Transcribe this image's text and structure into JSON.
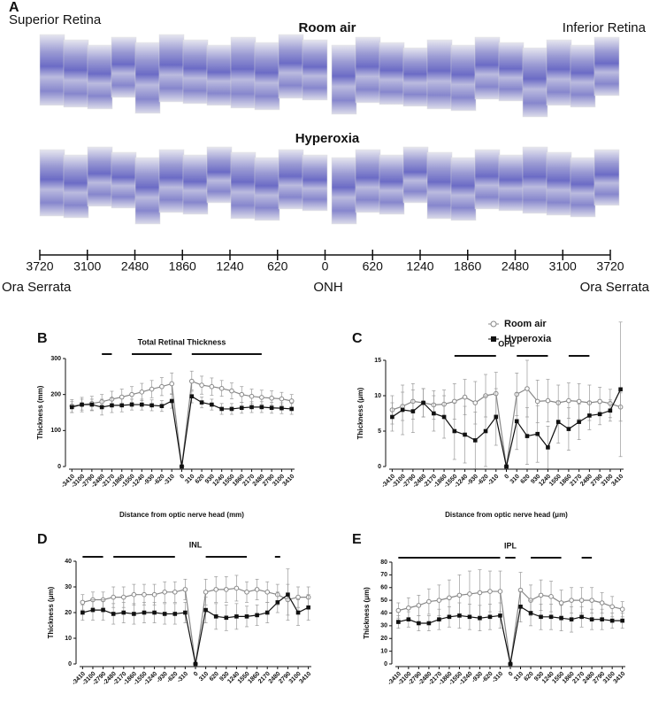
{
  "panel_a": {
    "label": "A",
    "superior": "Superior Retina",
    "inferior": "Inferior Retina",
    "room_air": "Room air",
    "hyperoxia": "Hyperoxia",
    "xlim": [
      -3720,
      3720
    ],
    "xticks": [
      {
        "value": -3720,
        "label": "3720"
      },
      {
        "value": -3100,
        "label": "3100"
      },
      {
        "value": -2480,
        "label": "2480"
      },
      {
        "value": -1860,
        "label": "1860"
      },
      {
        "value": -1240,
        "label": "1240"
      },
      {
        "value": -620,
        "label": "620"
      },
      0,
      620,
      1240,
      1860,
      2480,
      3100,
      3720
    ],
    "left_end": "Ora Serrata",
    "center": "ONH",
    "right_end": "Ora Serrata"
  },
  "chart_data": [
    {
      "panel": "B",
      "type": "line",
      "title": "Total Retinal Thickness",
      "xlabel": "Distance from optic nerve head (mm)",
      "ylabel": "Thickness (mm)",
      "x": [
        -3410,
        -3100,
        -2790,
        -2480,
        -2170,
        -1860,
        -1550,
        -1240,
        -930,
        -620,
        -310,
        0,
        310,
        620,
        930,
        1240,
        1550,
        1860,
        2170,
        2480,
        2790,
        3100,
        3410
      ],
      "xlim": [
        -3500,
        3500
      ],
      "xticks": [
        -3410,
        -3100,
        -2790,
        -2480,
        -2170,
        -1860,
        -1550,
        -1240,
        -930,
        -620,
        -310,
        0,
        310,
        620,
        930,
        1240,
        1550,
        1860,
        2170,
        2480,
        2790,
        3100,
        3410
      ],
      "ylim": [
        0,
        300
      ],
      "yticks": [
        0,
        100,
        200,
        300
      ],
      "series": [
        {
          "color": "#888888",
          "marker": "circle",
          "values": [
            168,
            172,
            175,
            180,
            187,
            193,
            200,
            207,
            215,
            222,
            230,
            0,
            237,
            226,
            222,
            217,
            210,
            200,
            195,
            192,
            190,
            188,
            182
          ],
          "errors": [
            18,
            20,
            20,
            20,
            22,
            22,
            22,
            24,
            24,
            25,
            30,
            0,
            28,
            25,
            24,
            22,
            22,
            22,
            20,
            20,
            20,
            18,
            18
          ]
        },
        {
          "color": "#111111",
          "marker": "square",
          "values": [
            165,
            172,
            172,
            165,
            170,
            170,
            172,
            172,
            170,
            168,
            182,
            0,
            195,
            178,
            172,
            160,
            160,
            163,
            165,
            165,
            163,
            162,
            160
          ],
          "errors": [
            15,
            15,
            15,
            22,
            20,
            18,
            15,
            15,
            15,
            15,
            20,
            0,
            18,
            15,
            15,
            15,
            15,
            15,
            15,
            15,
            15,
            15,
            15
          ]
        }
      ],
      "significance_bars": [
        [
          -2480,
          -2170
        ],
        [
          -1550,
          -310
        ],
        [
          310,
          2480
        ]
      ]
    },
    {
      "panel": "C",
      "type": "line",
      "title": "OPL",
      "xlabel": "Distance from optic nerve head (μm)",
      "ylabel": "Thickness (μm)",
      "x": [
        -3410,
        -3100,
        -2790,
        -2480,
        -2170,
        -1860,
        -1550,
        -1240,
        -930,
        -620,
        -310,
        0,
        310,
        620,
        930,
        1240,
        1550,
        1860,
        2170,
        2480,
        2790,
        3100,
        3410
      ],
      "xlim": [
        -3500,
        3500
      ],
      "xticks": [
        -3410,
        -3100,
        -2790,
        -2480,
        -2170,
        -1860,
        -1550,
        -1240,
        -930,
        -620,
        -310,
        0,
        310,
        620,
        930,
        1240,
        1550,
        1860,
        2170,
        2480,
        2790,
        3100,
        3410
      ],
      "ylim": [
        0,
        15
      ],
      "yticks": [
        0,
        5,
        10,
        15
      ],
      "legend": true,
      "series": [
        {
          "name": "Room air",
          "color": "#888888",
          "marker": "circle",
          "values": [
            8,
            8.5,
            9.2,
            9,
            8.7,
            8.8,
            9.2,
            9.8,
            9,
            10,
            10.3,
            0,
            10.2,
            11,
            9.2,
            9.3,
            9,
            9.3,
            9.2,
            9,
            9.2,
            8.9,
            8.4
          ],
          "errors": [
            2,
            2,
            2.5,
            2,
            2,
            2,
            2.5,
            2.5,
            3,
            3,
            3,
            0,
            3,
            4,
            3,
            3,
            2.5,
            2.5,
            2.5,
            2.5,
            2,
            2,
            2
          ]
        },
        {
          "name": "Hyperoxia",
          "color": "#111111",
          "marker": "square",
          "values": [
            7,
            8,
            7.8,
            9,
            7.5,
            7,
            5,
            4.5,
            3.7,
            5,
            7,
            0,
            6.4,
            4.3,
            4.6,
            2.7,
            6.3,
            5.3,
            6.3,
            7.2,
            7.4,
            7.9,
            10.9
          ],
          "errors": [
            2,
            3.5,
            3,
            2,
            2.5,
            3,
            4,
            4,
            4,
            5,
            4,
            0,
            4,
            4,
            4,
            3,
            3,
            3,
            2.5,
            2,
            1.5,
            1.5,
            9.5
          ]
        }
      ],
      "significance_bars": [
        [
          -1550,
          -310
        ],
        [
          310,
          1240
        ],
        [
          1860,
          2480
        ]
      ]
    },
    {
      "panel": "D",
      "type": "line",
      "title": "INL",
      "xlabel": "Distance from optic nerve head (μm)",
      "ylabel": "Thickness (μm)",
      "x": [
        -3410,
        -3100,
        -2790,
        -2480,
        -2170,
        -1860,
        -1550,
        -1240,
        -930,
        -620,
        -310,
        0,
        310,
        620,
        930,
        1240,
        1550,
        1860,
        2170,
        2480,
        2790,
        3100,
        3410
      ],
      "xlim": [
        -3500,
        3500
      ],
      "xticks": [
        -3410,
        -3100,
        -2790,
        -2480,
        -2170,
        -1860,
        -1550,
        -1240,
        -930,
        -620,
        -310,
        0,
        310,
        620,
        930,
        1240,
        1550,
        1860,
        2170,
        2480,
        2790,
        3100,
        3410
      ],
      "ylim": [
        0,
        40
      ],
      "yticks": [
        0,
        10,
        20,
        30,
        40
      ],
      "series": [
        {
          "color": "#888888",
          "marker": "circle",
          "values": [
            24,
            25,
            25,
            26,
            26,
            27,
            27,
            27,
            28,
            28,
            29,
            0,
            28,
            29,
            29,
            29.5,
            28,
            29,
            28,
            27,
            25,
            26,
            26
          ],
          "errors": [
            3,
            3,
            3,
            4,
            4,
            4,
            4,
            4,
            4,
            4,
            4,
            0,
            5,
            5,
            5,
            5,
            4,
            4,
            4,
            4,
            6,
            4,
            4
          ]
        },
        {
          "color": "#111111",
          "marker": "square",
          "values": [
            20,
            21,
            21,
            19.5,
            20,
            19.5,
            20,
            20,
            19.5,
            19.5,
            20,
            0,
            21,
            18.5,
            18,
            18.5,
            18.5,
            19,
            20,
            24,
            27,
            20,
            22
          ],
          "errors": [
            3,
            4,
            4,
            4,
            4,
            4,
            4,
            4,
            4,
            4,
            4,
            0,
            5,
            5,
            5,
            5,
            4,
            4,
            4,
            4,
            10,
            5,
            5
          ]
        }
      ],
      "significance_bars": [
        [
          -3410,
          -2790
        ],
        [
          -2480,
          -620
        ],
        [
          310,
          1550
        ],
        [
          2400,
          2560
        ]
      ]
    },
    {
      "panel": "E",
      "type": "line",
      "title": "IPL",
      "xlabel": "Distance from optic nerve head (μm)",
      "ylabel": "Thickness (μm)",
      "x": [
        -3410,
        -3100,
        -2790,
        -2480,
        -2170,
        -1860,
        -1550,
        -1240,
        -930,
        -620,
        -310,
        0,
        310,
        620,
        930,
        1240,
        1550,
        1860,
        2170,
        2480,
        2790,
        3100,
        3410
      ],
      "xlim": [
        -3500,
        3500
      ],
      "xticks": [
        -3410,
        -3100,
        -2790,
        -2480,
        -2170,
        -1860,
        -1550,
        -1240,
        -930,
        -620,
        -310,
        0,
        310,
        620,
        930,
        1240,
        1550,
        1860,
        2170,
        2480,
        2790,
        3100,
        3410
      ],
      "ylim": [
        0,
        80
      ],
      "yticks": [
        0,
        10,
        20,
        30,
        40,
        50,
        60,
        70,
        80
      ],
      "series": [
        {
          "color": "#888888",
          "marker": "circle",
          "values": [
            42,
            44,
            46,
            49,
            50,
            52,
            54,
            55,
            56,
            57,
            57,
            0,
            58,
            50,
            54,
            53,
            48,
            50,
            50,
            50,
            48,
            45,
            43
          ],
          "errors": [
            6,
            8,
            8,
            10,
            12,
            14,
            16,
            18,
            18,
            16,
            16,
            0,
            14,
            12,
            12,
            12,
            10,
            10,
            10,
            10,
            8,
            8,
            6
          ]
        },
        {
          "color": "#111111",
          "marker": "square",
          "values": [
            33,
            35,
            32,
            32,
            35,
            37,
            38,
            37,
            36,
            37,
            38,
            0,
            45,
            40,
            37,
            37,
            36,
            35,
            37,
            35,
            35,
            34,
            34
          ],
          "errors": [
            5,
            6,
            6,
            6,
            8,
            8,
            10,
            10,
            10,
            10,
            10,
            0,
            12,
            10,
            10,
            10,
            10,
            10,
            8,
            8,
            8,
            6,
            6
          ]
        }
      ],
      "significance_bars": [
        [
          -3410,
          -310
        ],
        [
          -155,
          155
        ],
        [
          620,
          1550
        ],
        [
          2170,
          2480
        ]
      ]
    }
  ]
}
